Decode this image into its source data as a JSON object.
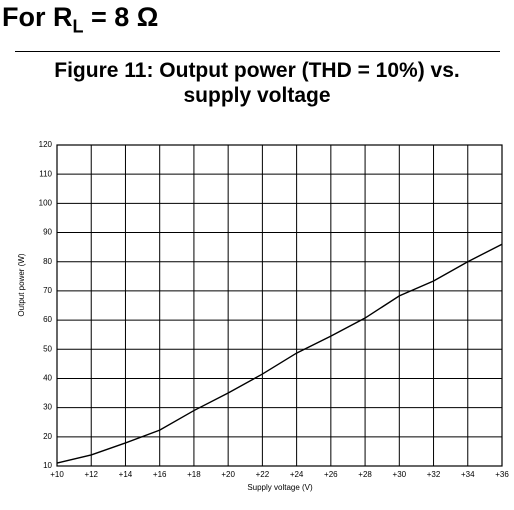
{
  "heading": {
    "main": "For R",
    "subscript": "L",
    "rest": " = 8 Ω"
  },
  "chart_data": {
    "type": "line",
    "title_lines": [
      "Figure 11: Output power (THD = 10%) vs.",
      "supply voltage"
    ],
    "x_label": "Supply voltage (V)",
    "y_label": "Output power (W)",
    "x": [
      10,
      12,
      14,
      16,
      18,
      20,
      22,
      24,
      26,
      28,
      30,
      32,
      34,
      36
    ],
    "series": [
      {
        "name": "Output power",
        "color": "#000000",
        "values": [
          11,
          13.8,
          17.9,
          22.3,
          29,
          35,
          41.5,
          48.7,
          54.5,
          60.7,
          68.3,
          73.4,
          80,
          86
        ]
      }
    ],
    "xlim": [
      10,
      36
    ],
    "ylim": [
      10,
      120
    ],
    "xticks": [
      {
        "value": 10,
        "label": "+10"
      },
      {
        "value": 12,
        "label": "+12"
      },
      {
        "value": 14,
        "label": "+14"
      },
      {
        "value": 16,
        "label": "+16"
      },
      {
        "value": 18,
        "label": "+18"
      },
      {
        "value": 20,
        "label": "+20"
      },
      {
        "value": 22,
        "label": "+22"
      },
      {
        "value": 24,
        "label": "+24"
      },
      {
        "value": 26,
        "label": "+26"
      },
      {
        "value": 28,
        "label": "+28"
      },
      {
        "value": 30,
        "label": "+30"
      },
      {
        "value": 32,
        "label": "+32"
      },
      {
        "value": 34,
        "label": "+34"
      },
      {
        "value": 36,
        "label": "+36"
      }
    ],
    "yticks": [
      10,
      20,
      30,
      40,
      50,
      60,
      70,
      80,
      90,
      100,
      110,
      120
    ],
    "grid": true
  }
}
